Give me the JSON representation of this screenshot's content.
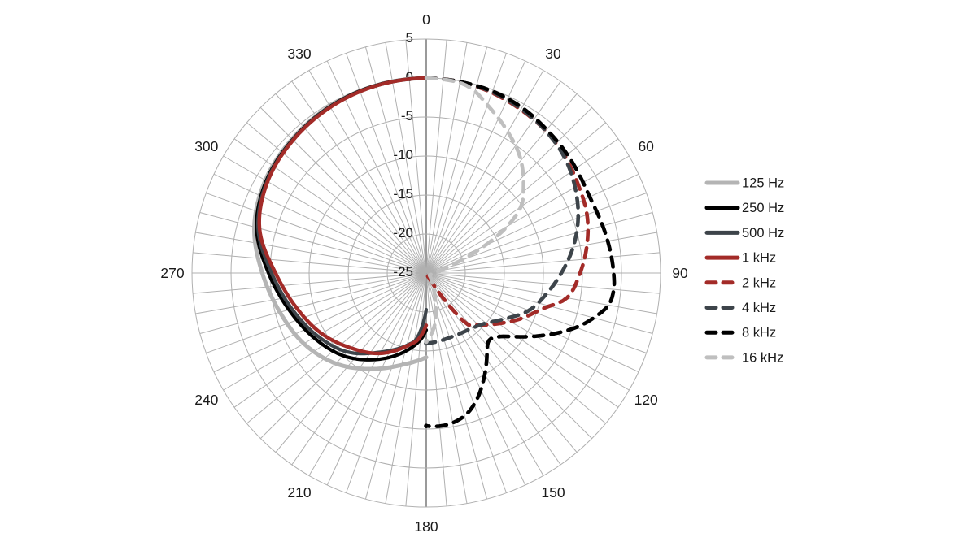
{
  "chart_data": {
    "type": "line",
    "subtype": "polar-pattern",
    "title": "",
    "angular_tick_degs": [
      0,
      30,
      60,
      90,
      120,
      150,
      180,
      210,
      240,
      270,
      300,
      330
    ],
    "angular_tick_labels": [
      "0",
      "30",
      "60",
      "90",
      "120",
      "150",
      "180",
      "210",
      "240",
      "270",
      "300",
      "330"
    ],
    "radial_tick_dbs": [
      5,
      0,
      -5,
      -10,
      -15,
      -20,
      -25
    ],
    "radial_tick_labels": [
      "5",
      "0",
      "-5",
      "-10",
      "-15",
      "-20",
      "-25"
    ],
    "radial_range_db": [
      -25,
      5
    ],
    "grid": {
      "grid_on": true,
      "spoke_step_deg": 5,
      "ring_step_db": 5,
      "color": "#b0b0b0",
      "axis_color": "#9a9a9a",
      "label_color": "#1a1a1a"
    },
    "legend": {
      "position": "right",
      "entries": [
        "125 Hz",
        "250 Hz",
        "500 Hz",
        "1 kHz",
        "2 kHz",
        "4 kHz",
        "8 kHz",
        "16 kHz"
      ]
    },
    "series": [
      {
        "name": "125 Hz",
        "color": "#b4b4b4",
        "line_style": "solid",
        "width": 5,
        "end_dot": false,
        "points": [
          [
            360,
            0
          ],
          [
            345,
            -0.1
          ],
          [
            330,
            -0.3
          ],
          [
            315,
            -0.7
          ],
          [
            300,
            -1.2
          ],
          [
            285,
            -2.2
          ],
          [
            270,
            -4.0
          ],
          [
            255,
            -5.6
          ],
          [
            240,
            -6.9
          ],
          [
            225,
            -8.6
          ],
          [
            210,
            -10.8
          ],
          [
            195,
            -12.8
          ],
          [
            180,
            -14.2
          ]
        ]
      },
      {
        "name": "250 Hz",
        "color": "#000000",
        "line_style": "solid",
        "width": 4.2,
        "end_dot": false,
        "points": [
          [
            360,
            0
          ],
          [
            345,
            -0.1
          ],
          [
            330,
            -0.35
          ],
          [
            315,
            -0.8
          ],
          [
            300,
            -1.35
          ],
          [
            285,
            -2.5
          ],
          [
            270,
            -4.8
          ],
          [
            255,
            -6.8
          ],
          [
            240,
            -8.4
          ],
          [
            225,
            -10.0
          ],
          [
            210,
            -12.2
          ],
          [
            195,
            -14.6
          ],
          [
            185,
            -16.4
          ],
          [
            180,
            -17.7
          ]
        ]
      },
      {
        "name": "500 Hz",
        "color": "#3d444a",
        "line_style": "solid",
        "width": 4.2,
        "end_dot": false,
        "points": [
          [
            360,
            0
          ],
          [
            345,
            -0.15
          ],
          [
            330,
            -0.4
          ],
          [
            315,
            -0.85
          ],
          [
            300,
            -1.45
          ],
          [
            285,
            -2.7
          ],
          [
            270,
            -5.2
          ],
          [
            255,
            -7.2
          ],
          [
            240,
            -8.9
          ],
          [
            225,
            -10.7
          ],
          [
            210,
            -13.3
          ],
          [
            195,
            -15.4
          ],
          [
            188,
            -16.6
          ],
          [
            180,
            -20.3
          ]
        ]
      },
      {
        "name": "1 kHz",
        "color": "#a32b28",
        "line_style": "solid",
        "width": 4.4,
        "end_dot": false,
        "points": [
          [
            360,
            0
          ],
          [
            345,
            -0.15
          ],
          [
            330,
            -0.45
          ],
          [
            315,
            -0.9
          ],
          [
            300,
            -1.55
          ],
          [
            285,
            -2.9
          ],
          [
            270,
            -5.7
          ],
          [
            255,
            -7.8
          ],
          [
            240,
            -9.5
          ],
          [
            225,
            -11.4
          ],
          [
            210,
            -13.1
          ],
          [
            195,
            -15.3
          ],
          [
            187,
            -16.4
          ],
          [
            180,
            -18.3
          ]
        ]
      },
      {
        "name": "2 kHz",
        "color": "#a32b28",
        "line_style": "dashed",
        "width": 4.6,
        "end_dot": true,
        "points": [
          [
            0,
            0
          ],
          [
            10,
            -0.1
          ],
          [
            20,
            -0.4
          ],
          [
            30,
            -0.8
          ],
          [
            40,
            -1.2
          ],
          [
            50,
            -1.8
          ],
          [
            60,
            -2.5
          ],
          [
            70,
            -3.1
          ],
          [
            80,
            -4.1
          ],
          [
            90,
            -5.3
          ],
          [
            100,
            -6.7
          ],
          [
            107,
            -9.4
          ],
          [
            116,
            -11.6
          ],
          [
            125,
            -13.7
          ],
          [
            135,
            -15.6
          ],
          [
            141,
            -16.5
          ],
          [
            144,
            -19.0
          ],
          [
            147,
            -22.0
          ],
          [
            150,
            -24.5
          ]
        ]
      },
      {
        "name": "4 kHz",
        "color": "#3d444a",
        "line_style": "dashed",
        "width": 4.6,
        "end_dot": true,
        "points": [
          [
            0,
            0
          ],
          [
            10,
            -0.1
          ],
          [
            20,
            -0.3
          ],
          [
            30,
            -0.7
          ],
          [
            40,
            -1.2
          ],
          [
            50,
            -1.9
          ],
          [
            60,
            -3.0
          ],
          [
            70,
            -4.3
          ],
          [
            80,
            -5.9
          ],
          [
            90,
            -7.7
          ],
          [
            100,
            -9.4
          ],
          [
            110,
            -11.0
          ],
          [
            120,
            -13.3
          ],
          [
            130,
            -15.0
          ],
          [
            140,
            -15.8
          ],
          [
            150,
            -16.1
          ],
          [
            160,
            -16.2
          ],
          [
            170,
            -16.1
          ],
          [
            180,
            -16.0
          ]
        ]
      },
      {
        "name": "8 kHz",
        "color": "#000000",
        "line_style": "dashed",
        "width": 4.6,
        "end_dot": true,
        "points": [
          [
            0,
            0
          ],
          [
            10,
            -0.1
          ],
          [
            20,
            -0.2
          ],
          [
            30,
            -0.5
          ],
          [
            40,
            -1.0
          ],
          [
            50,
            -1.4
          ],
          [
            60,
            -1.8
          ],
          [
            65,
            -1.9
          ],
          [
            70,
            -1.8
          ],
          [
            80,
            -1.4
          ],
          [
            90,
            -1.0
          ],
          [
            95,
            -0.9
          ],
          [
            100,
            -1.3
          ],
          [
            105,
            -2.8
          ],
          [
            110,
            -4.6
          ],
          [
            120,
            -8.8
          ],
          [
            128,
            -11.8
          ],
          [
            133,
            -12.9
          ],
          [
            137,
            -13.2
          ],
          [
            141,
            -12.6
          ],
          [
            146,
            -11.2
          ],
          [
            152,
            -9.4
          ],
          [
            158,
            -7.6
          ],
          [
            164,
            -6.2
          ],
          [
            170,
            -5.5
          ],
          [
            175,
            -5.3
          ],
          [
            180,
            -5.4
          ]
        ]
      },
      {
        "name": "16 kHz",
        "color": "#bfbfbf",
        "line_style": "dashed",
        "width": 4.6,
        "end_dot": true,
        "points": [
          [
            0,
            0
          ],
          [
            12,
            -0.4
          ],
          [
            21,
            -2.3
          ],
          [
            30,
            -4.1
          ],
          [
            39,
            -5.9
          ],
          [
            49,
            -8.5
          ],
          [
            55,
            -10.2
          ],
          [
            60,
            -13.0
          ],
          [
            64,
            -16.0
          ],
          [
            68,
            -19.0
          ],
          [
            73,
            -21.8
          ],
          [
            80,
            -23.2
          ],
          [
            90,
            -24.0
          ],
          [
            110,
            -24.4
          ],
          [
            130,
            -24.4
          ],
          [
            150,
            -23.4
          ],
          [
            158,
            -22.2
          ],
          [
            164,
            -20.6
          ],
          [
            168,
            -19.2
          ],
          [
            171,
            -18.2
          ],
          [
            175,
            -17.2
          ],
          [
            180,
            -16.2
          ]
        ]
      }
    ]
  }
}
